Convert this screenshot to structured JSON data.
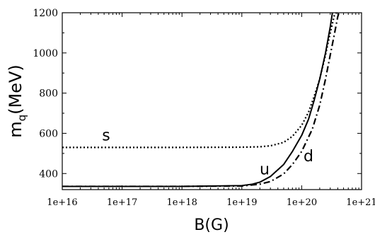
{
  "chart_data": {
    "type": "line",
    "title": "",
    "xlabel": "B(G)",
    "ylabel": {
      "main": "m",
      "subscript": "q",
      "unit": "(MeV)"
    },
    "x_scale": "log",
    "xlim": [
      1e+16,
      1e+21
    ],
    "ylim": [
      320,
      1200
    ],
    "x_ticks": [
      1e+16,
      1e+17,
      1e+18,
      1e+19,
      1e+20,
      1e+21
    ],
    "x_tick_labels": [
      "1e+16",
      "1e+17",
      "1e+18",
      "1e+19",
      "1e+20",
      "1e+21"
    ],
    "y_ticks": [
      400,
      600,
      800,
      1000,
      1200
    ],
    "y_tick_labels": [
      "400",
      "600",
      "800",
      "1000",
      "1200"
    ],
    "grid": false,
    "series": [
      {
        "name": "s",
        "style": "dotted",
        "x": [
          1e+16,
          1e+18,
          1e+19,
          2e+19,
          3e+19,
          5e+19,
          7e+19,
          1e+20,
          1.3e+20,
          1.6e+20,
          2e+20,
          2.5e+20,
          3e+20,
          3.5e+20,
          4e+20
        ],
        "y": [
          530,
          530,
          531,
          533,
          538,
          555,
          585,
          640,
          705,
          780,
          870,
          990,
          1100,
          1185,
          1210
        ]
      },
      {
        "name": "u",
        "style": "solid",
        "x": [
          1e+16,
          1e+18,
          1e+19,
          1.5e+19,
          2e+19,
          3e+19,
          5e+19,
          7e+19,
          1e+20,
          1.3e+20,
          1.6e+20,
          2e+20,
          2.5e+20,
          3e+20,
          3.3e+20
        ],
        "y": [
          336,
          336,
          340,
          347,
          357,
          385,
          445,
          510,
          590,
          670,
          760,
          870,
          1000,
          1130,
          1210
        ]
      },
      {
        "name": "d",
        "style": "dash-dot",
        "x": [
          1e+16,
          1e+18,
          1e+19,
          2e+19,
          3e+19,
          5e+19,
          7e+19,
          1e+20,
          1.5e+20,
          2e+20,
          2.5e+20,
          3e+20,
          3.5e+20,
          4e+20,
          4.3e+20
        ],
        "y": [
          336,
          336,
          338,
          347,
          360,
          398,
          445,
          510,
          620,
          740,
          870,
          990,
          1090,
          1180,
          1210
        ]
      }
    ],
    "annotations": [
      {
        "text": "s",
        "x": 5.4e+16,
        "y": 565
      },
      {
        "text": "u",
        "x": 2.4e+19,
        "y": 395
      },
      {
        "text": "d",
        "x": 1.3e+20,
        "y": 460
      }
    ]
  }
}
